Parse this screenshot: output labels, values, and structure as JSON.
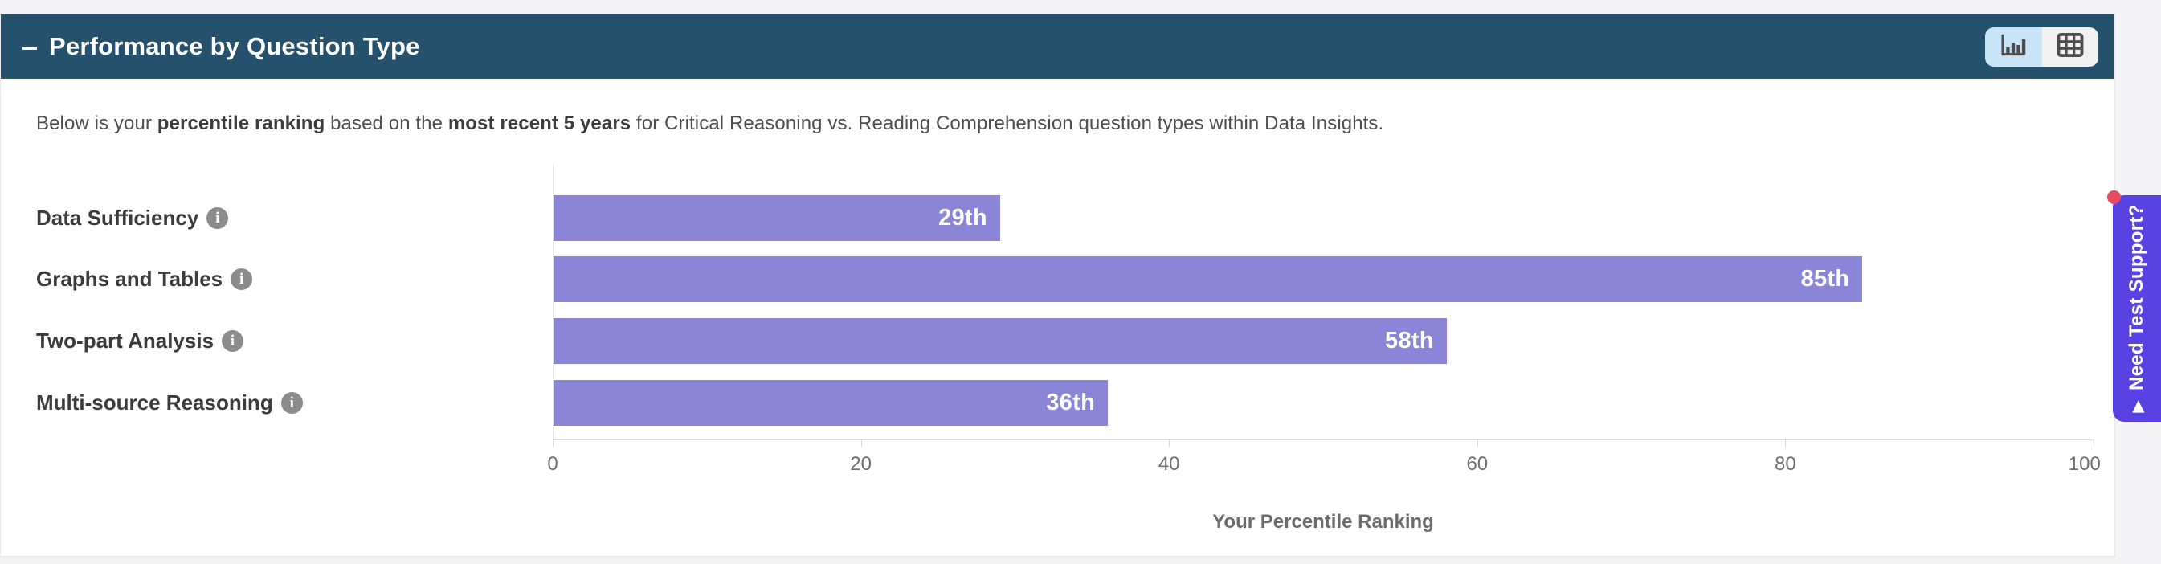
{
  "page": {
    "background": "#f4f4f6"
  },
  "panel": {
    "header": {
      "collapse_icon": "–",
      "title": "Performance by Question Type",
      "background": "#25516c"
    },
    "view_toggle": {
      "active_bg": "#c8e4f7",
      "inactive_bg": "#f1f1f2",
      "chart_button_icon": "bar-chart",
      "table_button_icon": "table",
      "active_view": "chart"
    },
    "description": {
      "part1": "Below is your ",
      "bold1": "percentile ranking",
      "part2": " based on the ",
      "bold2": "most recent 5 years",
      "part3": " for Critical Reasoning vs. Reading Comprehension question types within Data Insights."
    }
  },
  "icons": {
    "info_glyph": "i"
  },
  "chart_data": {
    "type": "bar",
    "orientation": "horizontal",
    "title": "",
    "categories": [
      "Data Sufficiency",
      "Graphs and Tables",
      "Two-part Analysis",
      "Multi-source Reasoning"
    ],
    "values": [
      29,
      85,
      58,
      36
    ],
    "value_labels": [
      "29th",
      "85th",
      "58th",
      "36th"
    ],
    "xlabel": "Your Percentile Ranking",
    "ylabel": "",
    "x_ticks": [
      0,
      20,
      40,
      60,
      80,
      100
    ],
    "xlim": [
      0,
      100
    ],
    "bar_color": "#8b85d8",
    "grid": false,
    "legend": false
  },
  "support_tab": {
    "label": "Need Test Support?",
    "arrow_icon": "▶",
    "background": "#5843e2",
    "notification_dot_color": "#ea4a5f"
  }
}
